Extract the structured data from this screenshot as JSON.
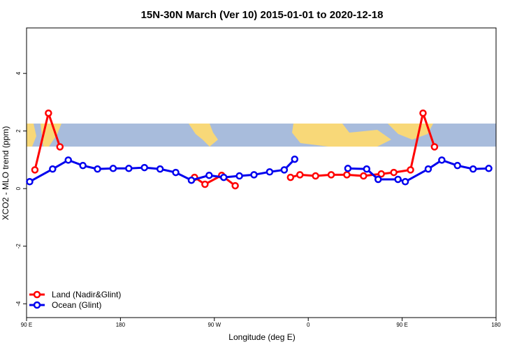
{
  "chart_data": {
    "type": "line",
    "title": "15N-30N March (Ver 10)   2015-01-01 to 2020-12-18",
    "x_label": "Longitude (deg E)",
    "y_label": "XCO2 - MLO trend (ppm)",
    "xlim": [
      90,
      540
    ],
    "xticks": [
      {
        "value": 90,
        "label": "90 E"
      },
      180,
      {
        "value": 270,
        "label": "90 W"
      },
      {
        "value": 360,
        "label": "0"
      },
      {
        "value": 450,
        "label": "90 E"
      },
      {
        "value": 540,
        "label": "180"
      }
    ],
    "ylim": [
      -4.48,
      5.58
    ],
    "yticks": [
      4,
      2,
      0,
      -2,
      -4
    ],
    "legend": "bottom-left",
    "series": [
      {
        "name": "Land (Nadir&Glint)",
        "color": "#ff0000",
        "x": [
          98,
          111,
          122,
          185,
          251,
          261,
          277,
          290,
          316,
          343,
          352,
          367,
          382,
          397,
          413,
          430,
          442,
          458,
          470,
          481
        ],
        "values": [
          0.65,
          2.62,
          1.45,
          null,
          0.39,
          0.15,
          0.46,
          0.1,
          null,
          0.39,
          0.48,
          0.44,
          0.48,
          0.48,
          0.44,
          0.51,
          0.56,
          0.65,
          2.62,
          1.45
        ]
      },
      {
        "name": "Ocean (Glint)",
        "color": "#0000ee",
        "x": [
          93,
          115,
          130,
          144,
          158,
          173,
          188,
          203,
          218,
          233,
          248,
          265,
          279,
          294,
          308,
          323,
          337,
          347,
          370,
          398,
          416,
          427,
          446,
          453,
          475,
          488,
          503,
          518,
          533
        ],
        "values": [
          0.24,
          0.68,
          0.99,
          0.8,
          0.68,
          0.7,
          0.7,
          0.73,
          0.68,
          0.56,
          0.29,
          0.46,
          0.39,
          0.44,
          0.48,
          0.58,
          0.65,
          1.02,
          null,
          0.7,
          0.68,
          0.32,
          0.32,
          0.24,
          0.68,
          0.99,
          0.8,
          0.68,
          0.7
        ]
      }
    ]
  }
}
